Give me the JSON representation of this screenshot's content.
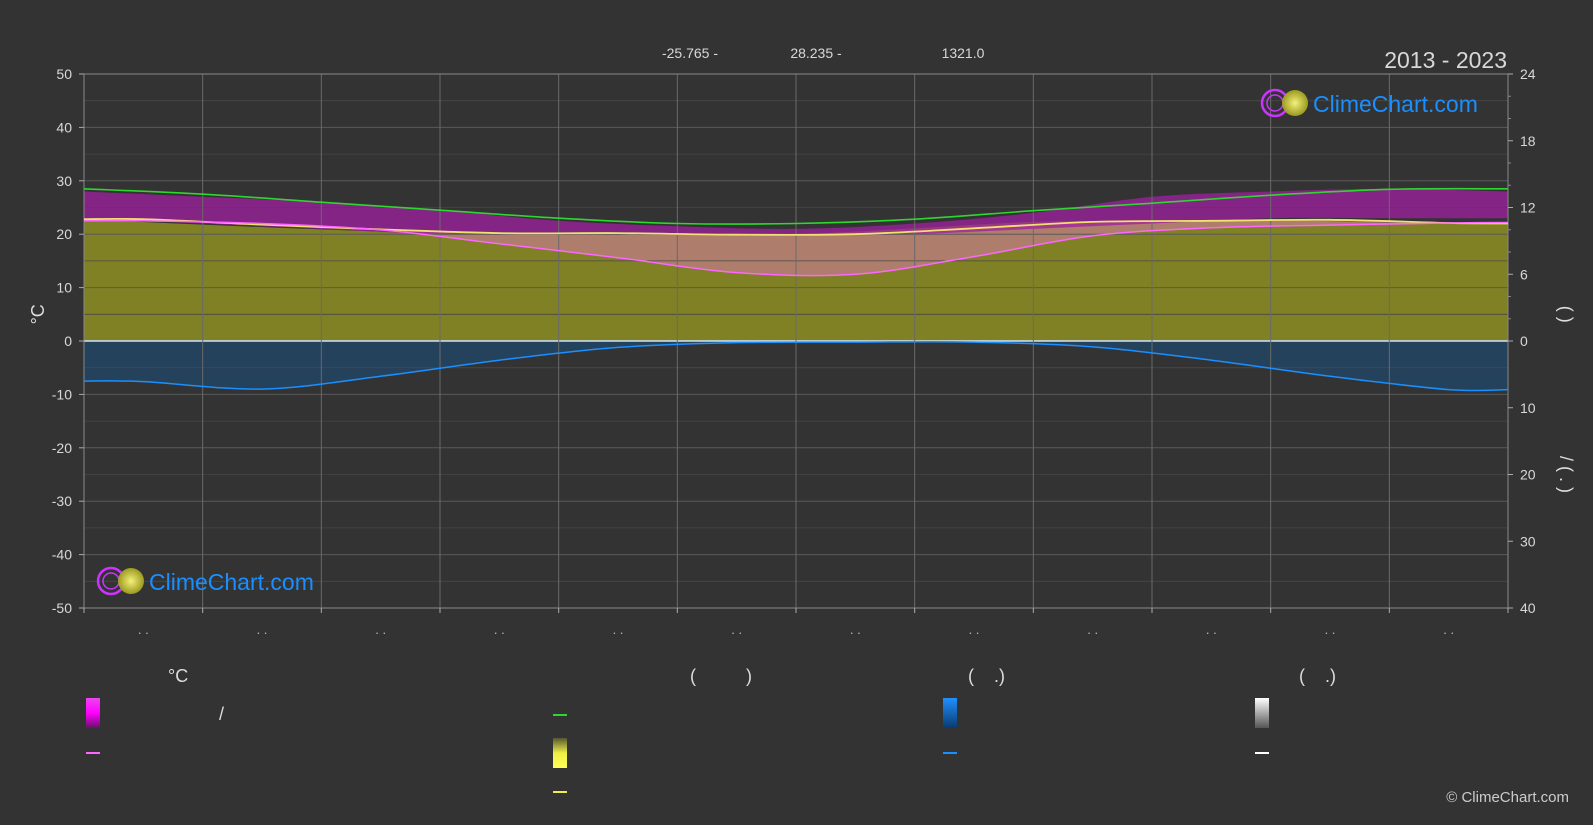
{
  "header": {
    "coords": [
      "-25.765 -",
      "28.235 -",
      "1321.0"
    ],
    "period": "2013 - 2023",
    "brand": "ClimeChart.com",
    "copyright": "© ClimeChart.com"
  },
  "colors": {
    "background": "#333333",
    "sunshine": "#2fd62f",
    "daylight_zone": "#9a9a20",
    "max_band": "#cc22cc",
    "avg_line": "#ff66ff",
    "mean_line": "#f0e070",
    "precip": "#1a8fff",
    "snow": "#ffffff",
    "brand": "#1a8fff"
  },
  "chart_data": {
    "type": "line",
    "months": 12,
    "x_tick_labels": [
      ". .",
      ". .",
      ". .",
      ". .",
      ". .",
      ". .",
      ". .",
      ". .",
      ". .",
      ". .",
      ". .",
      ". ."
    ],
    "left_axis": {
      "label": "°C",
      "ylim": [
        -50,
        50
      ],
      "ticks": [
        50,
        40,
        30,
        20,
        10,
        0,
        -10,
        -20,
        -30,
        -40,
        -50
      ]
    },
    "right_axis_top": {
      "range": [
        0,
        24
      ],
      "ticks": [
        24,
        18,
        12,
        6,
        0
      ],
      "label": "( )"
    },
    "right_axis_bottom": {
      "range": [
        0,
        40
      ],
      "ticks": [
        10,
        20,
        30,
        40
      ],
      "label": "/ ( . )"
    },
    "series": [
      {
        "key": "sunshine",
        "x": [
          0,
          1,
          2,
          3,
          4,
          5,
          6,
          7,
          8,
          9,
          10,
          11,
          12
        ],
        "values": [
          28.5,
          27.5,
          26,
          24.5,
          23,
          22,
          22,
          22.8,
          24.4,
          25.8,
          27.3,
          28.4,
          28.5
        ]
      },
      {
        "key": "mean_line",
        "x": [
          0,
          0.5,
          1.5,
          2.5,
          3.5,
          4.5,
          5.5,
          6.5,
          7.5,
          8.5,
          9.5,
          10.5,
          11.5,
          12
        ],
        "values": [
          22.8,
          22.8,
          21.8,
          20.9,
          20.2,
          20.2,
          19.9,
          20,
          21.1,
          22.3,
          22.5,
          22.7,
          22.1,
          22
        ]
      },
      {
        "key": "avg_line",
        "x": [
          0,
          0.5,
          1.5,
          2.5,
          3.5,
          4.5,
          5.5,
          6.5,
          7.5,
          8.5,
          9.5,
          10.5,
          11.5,
          12
        ],
        "values": [
          22.5,
          22.5,
          22,
          20.8,
          18.2,
          15.6,
          12.8,
          12.5,
          15.8,
          19.7,
          21.2,
          21.7,
          22.1,
          22.2
        ]
      },
      {
        "key": "precip",
        "x": [
          0,
          0.5,
          1.5,
          2.5,
          3.5,
          4.5,
          5.5,
          6.5,
          7.5,
          8.5,
          9.5,
          10.5,
          11.5,
          12
        ],
        "values": [
          -7.5,
          -7.6,
          -9.0,
          -6.6,
          -3.6,
          -1.2,
          -0.3,
          -0.2,
          -0.2,
          -1.1,
          -3.6,
          -6.6,
          -9.1,
          -9.1
        ]
      }
    ],
    "max_band": {
      "upper": [
        28,
        27,
        26,
        24.5,
        22.5,
        21.5,
        21,
        22,
        24,
        27,
        28,
        28.5,
        28
      ],
      "lower": [
        23,
        22,
        21,
        20,
        20,
        20,
        19.8,
        20,
        21,
        22,
        23,
        23,
        23
      ]
    },
    "olive_fill_top": [
      22.8,
      21.8,
      20.9,
      20.2,
      20.2,
      19.9,
      20,
      21.1,
      22.3,
      22.5,
      22.7,
      22.1,
      22
    ]
  },
  "legend": {
    "columns": [
      {
        "heading": "°C",
        "items": [
          "/",
          "",
          ""
        ]
      },
      {
        "heading": "(          )",
        "items": [
          "",
          "",
          ""
        ]
      },
      {
        "heading": "(    .)",
        "items": [
          "",
          ""
        ]
      },
      {
        "heading": "(    .)",
        "items": [
          "",
          ""
        ]
      }
    ]
  }
}
